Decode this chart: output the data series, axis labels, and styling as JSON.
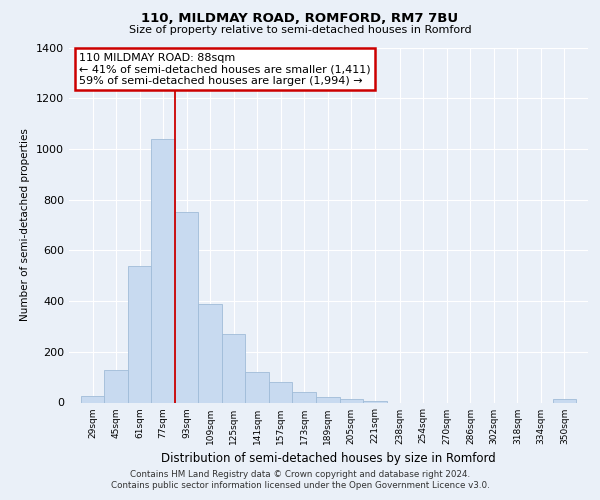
{
  "title1": "110, MILDMAY ROAD, ROMFORD, RM7 7BU",
  "title2": "Size of property relative to semi-detached houses in Romford",
  "xlabel": "Distribution of semi-detached houses by size in Romford",
  "ylabel": "Number of semi-detached properties",
  "bar_labels": [
    "29sqm",
    "45sqm",
    "61sqm",
    "77sqm",
    "93sqm",
    "109sqm",
    "125sqm",
    "141sqm",
    "157sqm",
    "173sqm",
    "189sqm",
    "205sqm",
    "221sqm",
    "238sqm",
    "254sqm",
    "270sqm",
    "286sqm",
    "302sqm",
    "318sqm",
    "334sqm",
    "350sqm"
  ],
  "bar_values": [
    25,
    130,
    540,
    1040,
    750,
    390,
    270,
    120,
    80,
    40,
    20,
    15,
    5,
    0,
    0,
    0,
    0,
    0,
    0,
    0,
    15
  ],
  "bar_color": "#c8daf0",
  "bar_edge_color": "#a0bcd8",
  "property_line_color": "#cc0000",
  "annotation_text": "110 MILDMAY ROAD: 88sqm\n← 41% of semi-detached houses are smaller (1,411)\n59% of semi-detached houses are larger (1,994) →",
  "annotation_box_color": "#ffffff",
  "annotation_box_edge": "#cc0000",
  "ylim": [
    0,
    1400
  ],
  "background_color": "#eaf0f8",
  "plot_background": "#eaf0f8",
  "grid_color": "#ffffff",
  "bin_width": 16,
  "footer1": "Contains HM Land Registry data © Crown copyright and database right 2024.",
  "footer2": "Contains public sector information licensed under the Open Government Licence v3.0."
}
